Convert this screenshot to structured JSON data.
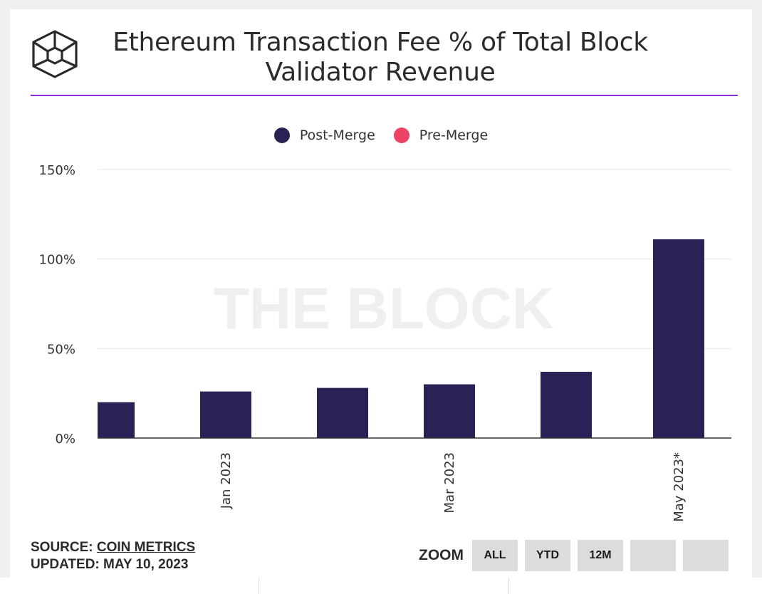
{
  "header": {
    "title_line1": "Ethereum Transaction Fee % of Total Block",
    "title_line2": "Validator Revenue"
  },
  "watermark": "THE BLOCK",
  "legend": [
    {
      "label": "Post-Merge",
      "color": "#2a2156"
    },
    {
      "label": "Pre-Merge",
      "color": "#ec4263"
    }
  ],
  "footer": {
    "source_prefix": "SOURCE:",
    "source_link": "COIN METRICS",
    "updated": "UPDATED: MAY 10, 2023"
  },
  "zoom": {
    "label": "ZOOM",
    "buttons": [
      "ALL",
      "YTD",
      "12M",
      "",
      ""
    ]
  },
  "chart_data": {
    "type": "bar",
    "title": "Ethereum Transaction Fee % of Total Block Validator Revenue",
    "categories": [
      "",
      "Jan 2023",
      "",
      "Mar 2023",
      "",
      "May 2023*"
    ],
    "series": [
      {
        "name": "Post-Merge",
        "color": "#2a2156",
        "values": [
          20,
          26,
          28,
          30,
          37,
          111
        ]
      }
    ],
    "y_ticks": [
      "0%",
      "50%",
      "100%",
      "150%"
    ],
    "ylim": [
      0,
      150
    ],
    "grid": true,
    "legend_position": "top-center"
  }
}
